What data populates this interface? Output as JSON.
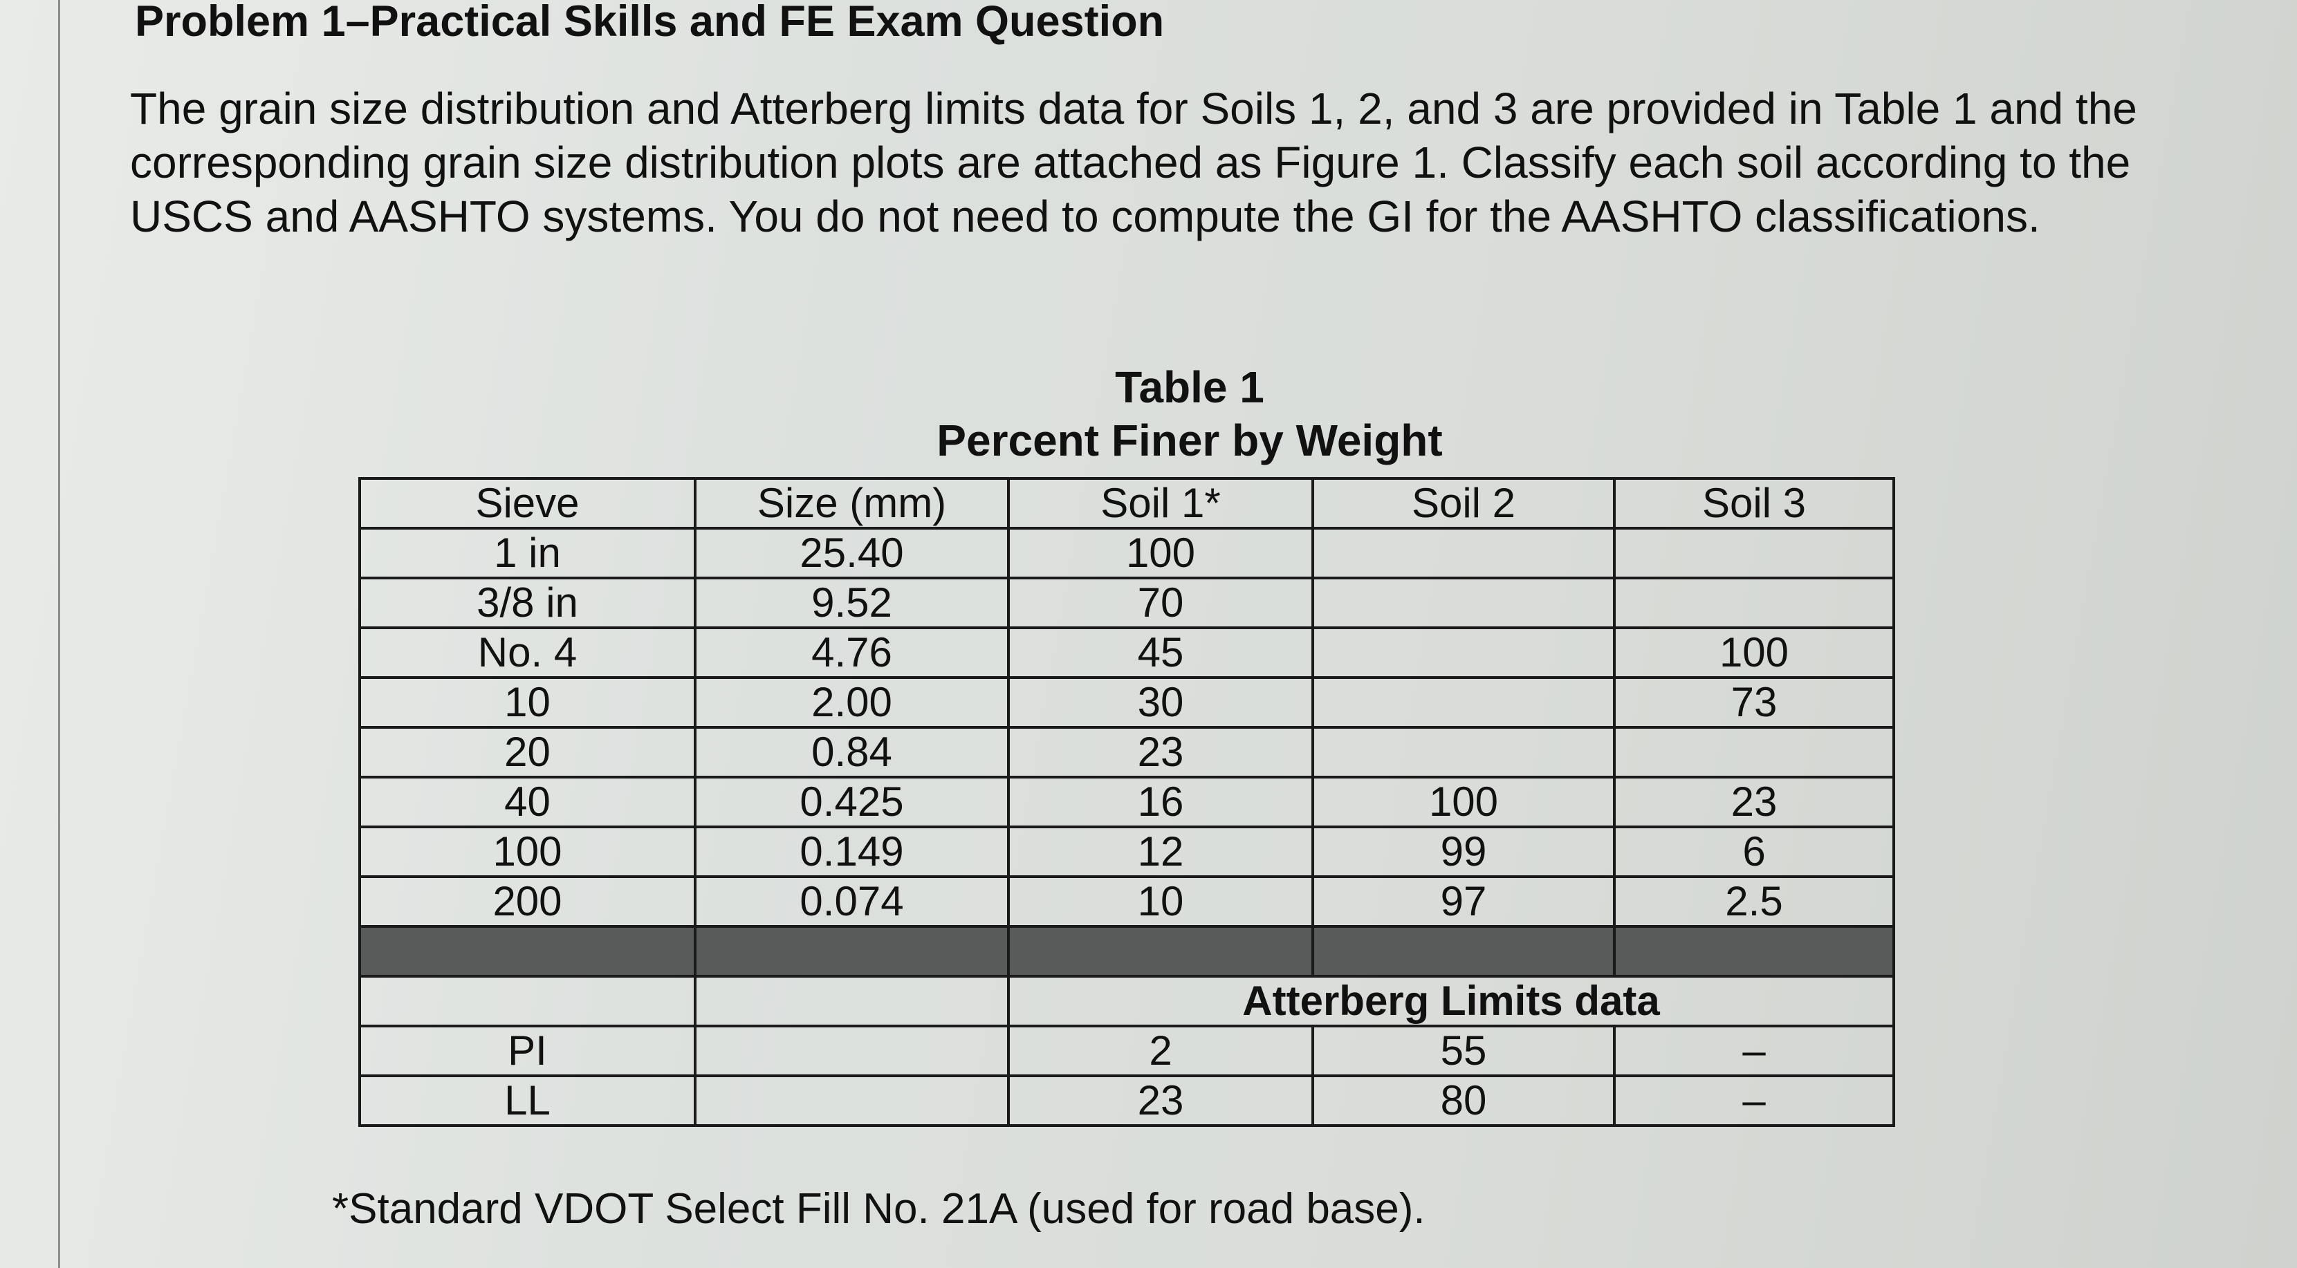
{
  "problem": {
    "heading": "Problem 1–Practical Skills and FE Exam Question",
    "paragraph": "The grain size distribution and Atterberg limits data for Soils 1, 2, and 3 are provided in Table 1 and the corresponding grain size distribution plots are attached as Figure 1.  Classify each soil according to the USCS and AASHTO systems.  You do not need to compute the GI for the AASHTO classifications."
  },
  "table": {
    "title": "Table 1",
    "subtitle": "Percent Finer by Weight",
    "headers": [
      "Sieve",
      "Size (mm)",
      "Soil 1*",
      "Soil 2",
      "Soil 3"
    ],
    "rows": [
      [
        "1 in",
        "25.40",
        "100",
        "",
        ""
      ],
      [
        "3/8 in",
        "9.52",
        "70",
        "",
        ""
      ],
      [
        "No. 4",
        "4.76",
        "45",
        "",
        "100"
      ],
      [
        "10",
        "2.00",
        "30",
        "",
        "73"
      ],
      [
        "20",
        "0.84",
        "23",
        "",
        ""
      ],
      [
        "40",
        "0.425",
        "16",
        "100",
        "23"
      ],
      [
        "100",
        "0.149",
        "12",
        "99",
        "6"
      ],
      [
        "200",
        "0.074",
        "10",
        "97",
        "2.5"
      ]
    ],
    "atterberg_label": "Atterberg Limits data",
    "atterberg_rows": [
      [
        "PI",
        "",
        "2",
        "55",
        "–"
      ],
      [
        "LL",
        "",
        "23",
        "80",
        "–"
      ]
    ]
  },
  "footnote": "*Standard VDOT Select Fill No. 21A (used for road base)."
}
